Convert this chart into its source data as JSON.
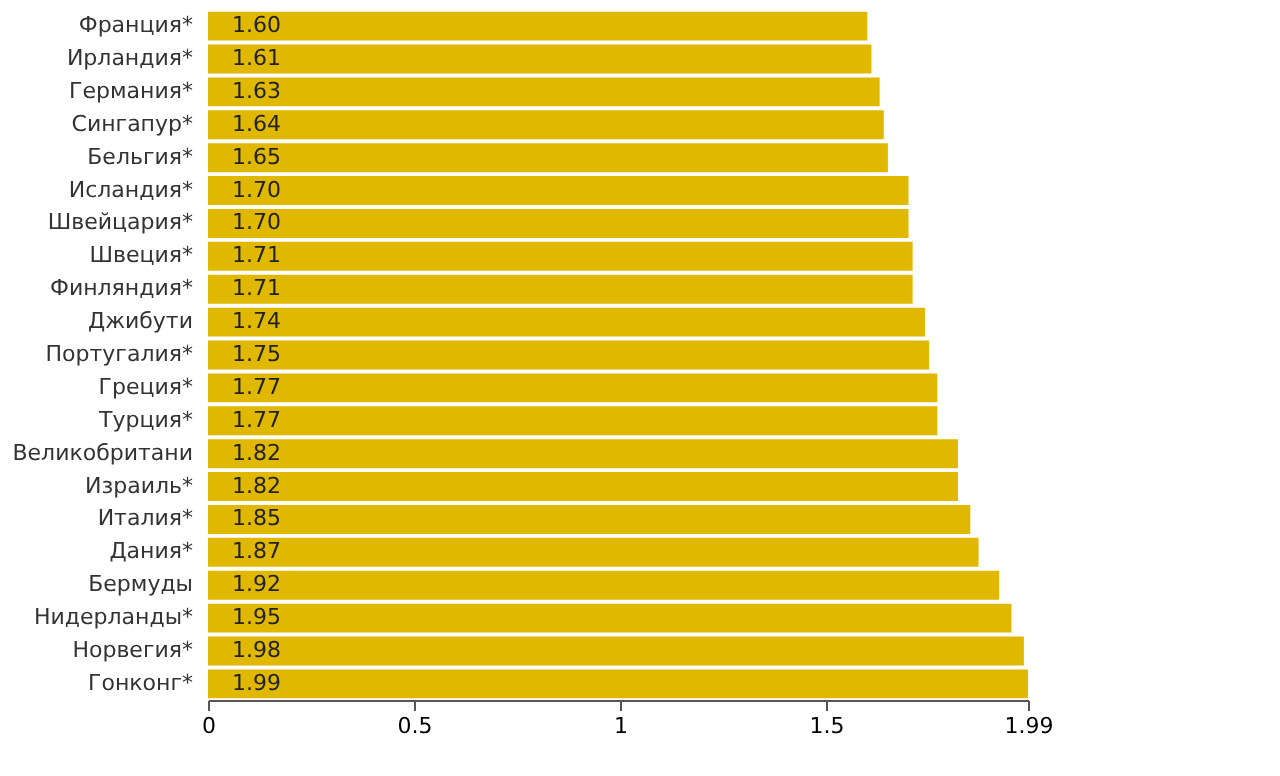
{
  "chart_data": {
    "type": "bar",
    "orientation": "horizontal",
    "categories": [
      "Франция*",
      "Ирландия*",
      "Германия*",
      "Сингапур*",
      "Бельгия*",
      "Исландия*",
      "Швейцария*",
      "Швеция*",
      "Финляндия*",
      "Джибути",
      "Португалия*",
      "Греция*",
      "Турция*",
      "Великобритани",
      "Израиль*",
      "Италия*",
      "Дания*",
      "Бермуды",
      "Нидерланды*",
      "Норвегия*",
      "Гонконг*"
    ],
    "values": [
      1.6,
      1.61,
      1.63,
      1.64,
      1.65,
      1.7,
      1.7,
      1.71,
      1.71,
      1.74,
      1.75,
      1.77,
      1.77,
      1.82,
      1.82,
      1.85,
      1.87,
      1.92,
      1.95,
      1.98,
      1.99
    ],
    "value_labels": [
      "1.60",
      "1.61",
      "1.63",
      "1.64",
      "1.65",
      "1.70",
      "1.70",
      "1.71",
      "1.71",
      "1.74",
      "1.75",
      "1.77",
      "1.77",
      "1.82",
      "1.82",
      "1.85",
      "1.87",
      "1.92",
      "1.95",
      "1.98",
      "1.99"
    ],
    "color": "#e0b800",
    "xlim": [
      0,
      1.99
    ],
    "xticks": [
      0,
      0.5,
      1,
      1.5,
      1.99
    ]
  }
}
